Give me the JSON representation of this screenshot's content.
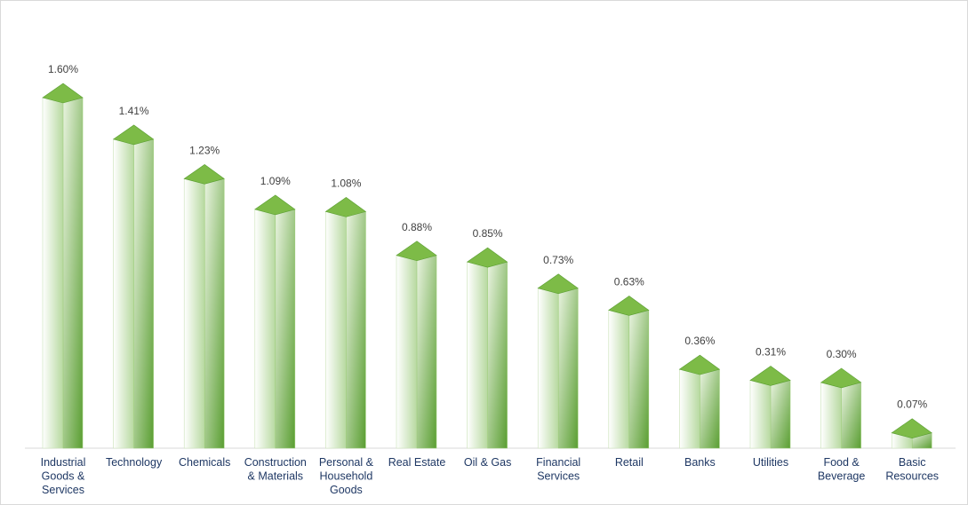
{
  "chart_data": {
    "type": "bar",
    "title": "",
    "xlabel": "",
    "ylabel": "",
    "ylim": [
      0,
      1.6
    ],
    "grid": false,
    "legend": "none",
    "colors": {
      "bar_dark": "#5a9e32",
      "bar_light": "#ffffff",
      "top": "#7dbb47"
    },
    "categories": [
      [
        "Industrial",
        "Goods &",
        "Services"
      ],
      [
        "Technology"
      ],
      [
        "Chemicals"
      ],
      [
        "Construction",
        "& Materials"
      ],
      [
        "Personal &",
        "Household",
        "Goods"
      ],
      [
        "Real Estate"
      ],
      [
        "Oil & Gas"
      ],
      [
        "Financial",
        "Services"
      ],
      [
        "Retail"
      ],
      [
        "Banks"
      ],
      [
        "Utilities"
      ],
      [
        "Food &",
        "Beverage"
      ],
      [
        "Basic",
        "Resources"
      ]
    ],
    "values": [
      1.6,
      1.41,
      1.23,
      1.09,
      1.08,
      0.88,
      0.85,
      0.73,
      0.63,
      0.36,
      0.31,
      0.3,
      0.07
    ],
    "value_labels": [
      "1.60%",
      "1.41%",
      "1.23%",
      "1.09%",
      "1.08%",
      "0.88%",
      "0.85%",
      "0.73%",
      "0.63%",
      "0.36%",
      "0.31%",
      "0.30%",
      "0.07%"
    ]
  }
}
